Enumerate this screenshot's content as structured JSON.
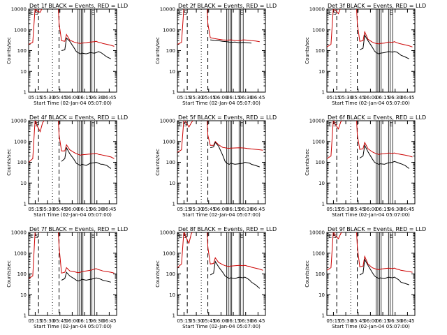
{
  "figure": {
    "series_colors": {
      "events": "#000000",
      "lld": "#cc0000"
    },
    "x_ticks": [
      "05:15",
      "05:30",
      "05:45",
      "06:00",
      "06:15",
      "06:30",
      "06:45"
    ],
    "y_ticks": [
      "1",
      "10",
      "100",
      "1000",
      "10000"
    ],
    "ylabel": "Counts/sec",
    "xlabel": "Start Time (02-Jan-04 05:07:00)"
  },
  "chart_data": [
    {
      "type": "line",
      "title": "Det 1f BLACK = Events, RED = LLD",
      "markers": [
        "E",
        "S",
        "E"
      ],
      "y_scale": "log",
      "ylim": [
        1,
        10000
      ],
      "x_minutes": [
        0,
        5,
        8,
        10,
        14,
        17,
        20,
        25,
        30,
        36,
        37,
        40,
        44,
        46,
        50,
        55,
        58,
        60,
        63,
        65,
        70,
        75,
        80,
        82,
        85,
        88,
        90,
        95,
        100,
        104
      ],
      "series": [
        {
          "key": "lld",
          "values": [
            200,
            250,
            14000,
            8000,
            7000,
            12000,
            13000,
            13000,
            13000,
            13000,
            2000,
            300,
            280,
            600,
            320,
            260,
            240,
            230,
            220,
            230,
            240,
            260,
            270,
            280,
            250,
            240,
            220,
            200,
            180,
            160
          ]
        },
        {
          "key": "events",
          "values": [
            null,
            null,
            null,
            null,
            null,
            null,
            null,
            null,
            null,
            null,
            null,
            100,
            110,
            400,
            280,
            140,
            90,
            80,
            70,
            75,
            70,
            80,
            75,
            80,
            90,
            80,
            70,
            50,
            40,
            null
          ]
        }
      ]
    },
    {
      "type": "line",
      "title": "Det 2f BLACK = Events, RED = LLD",
      "markers": [
        "E",
        "S",
        "E"
      ],
      "y_scale": "log",
      "ylim": [
        1,
        10000
      ],
      "x_minutes": [
        0,
        5,
        8,
        10,
        14,
        17,
        20,
        25,
        30,
        36,
        37,
        40,
        45,
        50,
        55,
        60,
        65,
        70,
        75,
        80,
        85,
        90,
        95,
        100
      ],
      "series": [
        {
          "key": "lld",
          "values": [
            200,
            250,
            14000,
            14000,
            14000,
            14000,
            14000,
            14000,
            14000,
            14000,
            2000,
            420,
            380,
            350,
            330,
            320,
            330,
            310,
            300,
            330,
            320,
            300,
            290,
            270
          ]
        },
        {
          "key": "events",
          "values": [
            null,
            null,
            null,
            null,
            null,
            null,
            null,
            null,
            null,
            null,
            null,
            330,
            310,
            300,
            280,
            270,
            250,
            260,
            240,
            250,
            240,
            230,
            null,
            null
          ]
        }
      ]
    },
    {
      "type": "line",
      "title": "Det 3f BLACK = Events, RED = LLD",
      "markers": [
        "E",
        "S",
        "E"
      ],
      "y_scale": "log",
      "ylim": [
        1,
        10000
      ],
      "x_minutes": [
        0,
        5,
        8,
        10,
        14,
        17,
        20,
        25,
        30,
        36,
        37,
        40,
        44,
        46,
        50,
        55,
        58,
        60,
        63,
        65,
        70,
        75,
        80,
        82,
        85,
        88,
        90,
        95,
        100,
        104
      ],
      "series": [
        {
          "key": "lld",
          "values": [
            150,
            200,
            14000,
            9000,
            6000,
            12000,
            13000,
            13000,
            13000,
            13000,
            2000,
            280,
            300,
            800,
            350,
            260,
            230,
            220,
            210,
            220,
            230,
            260,
            250,
            270,
            240,
            220,
            210,
            190,
            170,
            150
          ]
        },
        {
          "key": "events",
          "values": [
            null,
            null,
            null,
            null,
            null,
            null,
            null,
            null,
            null,
            null,
            null,
            110,
            130,
            550,
            300,
            150,
            95,
            80,
            70,
            75,
            80,
            90,
            85,
            90,
            85,
            70,
            60,
            50,
            40,
            null
          ]
        }
      ]
    },
    {
      "type": "line",
      "title": "Det 4f BLACK = Events, RED = LLD",
      "markers": [
        "E",
        "S",
        "E"
      ],
      "y_scale": "log",
      "ylim": [
        1,
        10000
      ],
      "x_minutes": [
        0,
        5,
        8,
        10,
        14,
        17,
        20,
        25,
        30,
        36,
        37,
        40,
        44,
        46,
        50,
        55,
        58,
        60,
        63,
        65,
        70,
        75,
        80,
        82,
        85,
        88,
        90,
        95,
        100,
        104
      ],
      "series": [
        {
          "key": "lld",
          "values": [
            100,
            150,
            14000,
            6000,
            3000,
            8000,
            12000,
            13000,
            13000,
            13000,
            2000,
            350,
            350,
            700,
            400,
            300,
            260,
            240,
            220,
            230,
            240,
            250,
            260,
            270,
            240,
            230,
            220,
            200,
            180,
            150
          ]
        },
        {
          "key": "events",
          "values": [
            null,
            null,
            null,
            null,
            null,
            null,
            null,
            null,
            null,
            null,
            null,
            110,
            150,
            500,
            260,
            140,
            90,
            80,
            70,
            80,
            70,
            90,
            95,
            100,
            90,
            80,
            80,
            70,
            50,
            null
          ]
        }
      ]
    },
    {
      "type": "line",
      "title": "Det 5f BLACK = Events, RED = LLD",
      "markers": [
        "E",
        "S",
        "E"
      ],
      "y_scale": "log",
      "ylim": [
        1,
        10000
      ],
      "x_minutes": [
        0,
        5,
        8,
        10,
        14,
        17,
        20,
        25,
        30,
        36,
        37,
        40,
        44,
        46,
        50,
        55,
        58,
        60,
        63,
        65,
        70,
        75,
        80,
        82,
        85,
        88,
        90,
        95,
        100,
        104
      ],
      "series": [
        {
          "key": "lld",
          "values": [
            300,
            400,
            14000,
            9000,
            5000,
            8000,
            12000,
            13000,
            13000,
            13000,
            2000,
            650,
            650,
            1000,
            700,
            520,
            500,
            480,
            470,
            480,
            490,
            500,
            490,
            480,
            460,
            450,
            440,
            420,
            400,
            380
          ]
        },
        {
          "key": "events",
          "values": [
            null,
            null,
            null,
            null,
            null,
            null,
            null,
            null,
            null,
            null,
            null,
            500,
            550,
            900,
            600,
            220,
            110,
            90,
            80,
            90,
            80,
            85,
            90,
            100,
            95,
            90,
            80,
            70,
            60,
            null
          ]
        }
      ]
    },
    {
      "type": "line",
      "title": "Det 6f BLACK = Events, RED = LLD",
      "markers": [
        "E",
        "S",
        "E"
      ],
      "y_scale": "log",
      "ylim": [
        1,
        10000
      ],
      "x_minutes": [
        0,
        5,
        8,
        10,
        14,
        17,
        20,
        25,
        30,
        36,
        37,
        40,
        44,
        46,
        50,
        55,
        58,
        60,
        63,
        65,
        70,
        75,
        80,
        82,
        85,
        88,
        90,
        95,
        100,
        104
      ],
      "series": [
        {
          "key": "lld",
          "values": [
            150,
            200,
            14000,
            7000,
            4000,
            9000,
            12000,
            13000,
            13000,
            13000,
            2000,
            420,
            450,
            900,
            450,
            320,
            280,
            260,
            240,
            250,
            260,
            280,
            270,
            280,
            260,
            250,
            240,
            220,
            200,
            180
          ]
        },
        {
          "key": "events",
          "values": [
            null,
            null,
            null,
            null,
            null,
            null,
            null,
            null,
            null,
            null,
            null,
            160,
            200,
            650,
            320,
            150,
            100,
            90,
            80,
            85,
            80,
            95,
            100,
            110,
            100,
            90,
            85,
            70,
            50,
            null
          ]
        }
      ]
    },
    {
      "type": "line",
      "title": "Det 7f BLACK = Events, RED = LLD",
      "markers": [
        "E",
        "S",
        "E"
      ],
      "y_scale": "log",
      "ylim": [
        1,
        10000
      ],
      "x_minutes": [
        0,
        5,
        8,
        10,
        14,
        17,
        20,
        25,
        30,
        36,
        37,
        40,
        44,
        46,
        50,
        55,
        58,
        60,
        63,
        65,
        70,
        75,
        80,
        82,
        85,
        88,
        90,
        95,
        100,
        104
      ],
      "series": [
        {
          "key": "lld",
          "values": [
            60,
            80,
            14000,
            11000,
            10000,
            12000,
            13000,
            13000,
            13000,
            13000,
            2000,
            110,
            120,
            200,
            140,
            130,
            120,
            115,
            120,
            130,
            140,
            150,
            170,
            180,
            160,
            150,
            140,
            130,
            120,
            110
          ]
        },
        {
          "key": "events",
          "values": [
            null,
            null,
            null,
            null,
            null,
            null,
            null,
            null,
            null,
            null,
            null,
            50,
            60,
            120,
            80,
            60,
            50,
            45,
            50,
            55,
            50,
            55,
            60,
            65,
            60,
            55,
            50,
            45,
            40,
            null
          ]
        }
      ]
    },
    {
      "type": "line",
      "title": "Det 8f BLACK = Events, RED = LLD",
      "markers": [
        "E",
        "S",
        "E"
      ],
      "y_scale": "log",
      "ylim": [
        1,
        10000
      ],
      "x_minutes": [
        0,
        5,
        8,
        10,
        14,
        17,
        20,
        25,
        30,
        36,
        37,
        40,
        44,
        46,
        50,
        55,
        58,
        60,
        63,
        65,
        70,
        75,
        80,
        82,
        85,
        88,
        90,
        95,
        100,
        104
      ],
      "series": [
        {
          "key": "lld",
          "values": [
            200,
            300,
            14000,
            6000,
            3000,
            9000,
            12000,
            13000,
            13000,
            13000,
            2000,
            300,
            320,
            600,
            360,
            280,
            250,
            240,
            230,
            240,
            250,
            260,
            250,
            260,
            240,
            230,
            210,
            190,
            170,
            150
          ]
        },
        {
          "key": "events",
          "values": [
            null,
            null,
            null,
            null,
            null,
            null,
            null,
            null,
            null,
            null,
            null,
            90,
            110,
            400,
            220,
            120,
            80,
            70,
            60,
            65,
            60,
            70,
            65,
            70,
            60,
            50,
            40,
            30,
            20,
            null
          ]
        }
      ]
    },
    {
      "type": "line",
      "title": "Det 9f BLACK = Events, RED = LLD",
      "markers": [
        "E",
        "S",
        "E"
      ],
      "y_scale": "log",
      "ylim": [
        1,
        10000
      ],
      "x_minutes": [
        0,
        5,
        8,
        10,
        14,
        17,
        20,
        25,
        30,
        36,
        37,
        40,
        44,
        46,
        50,
        55,
        58,
        60,
        63,
        65,
        70,
        75,
        80,
        82,
        85,
        88,
        90,
        95,
        100,
        104
      ],
      "series": [
        {
          "key": "lld",
          "values": [
            150,
            200,
            14000,
            7000,
            5000,
            9000,
            12000,
            13000,
            13000,
            13000,
            2000,
            220,
            240,
            700,
            300,
            200,
            180,
            170,
            160,
            170,
            180,
            190,
            180,
            190,
            170,
            160,
            150,
            140,
            130,
            120
          ]
        },
        {
          "key": "events",
          "values": [
            null,
            null,
            null,
            null,
            null,
            null,
            null,
            null,
            null,
            null,
            null,
            90,
            110,
            500,
            260,
            120,
            80,
            70,
            60,
            65,
            60,
            70,
            65,
            70,
            60,
            50,
            40,
            35,
            30,
            null
          ]
        }
      ]
    }
  ]
}
